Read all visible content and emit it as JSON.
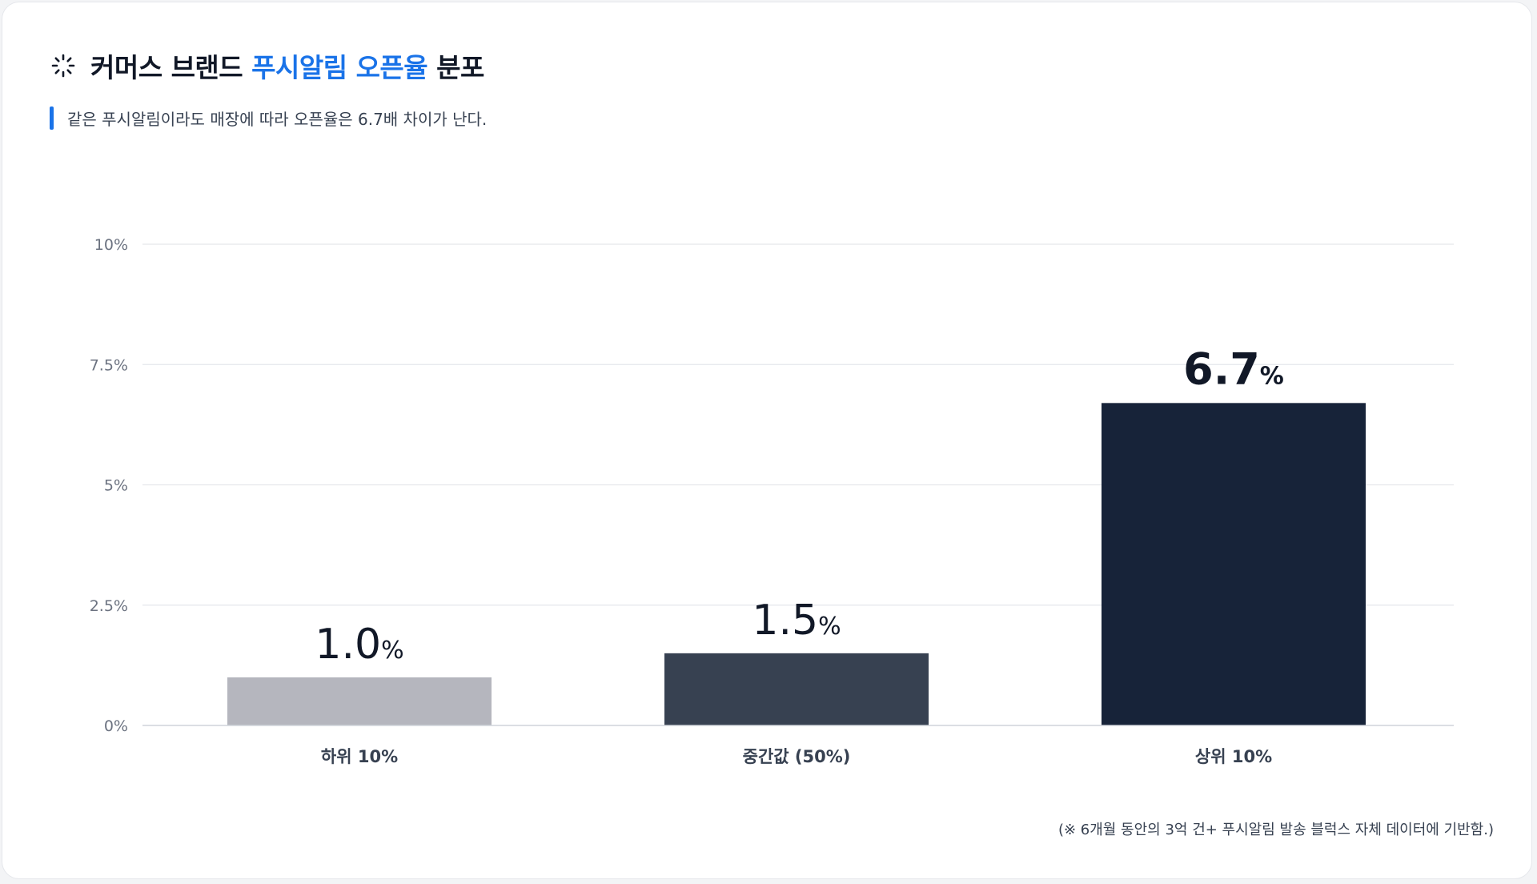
{
  "header": {
    "title_prefix": "커머스 브랜드 ",
    "title_accent": "푸시알림 오픈율",
    "title_suffix": " 분포",
    "subtitle": "같은 푸시알림이라도 매장에 따라 오픈율은 6.7배 차이가 난다.",
    "icon": "loading-spinner-icon"
  },
  "footnote": "(※ 6개월 동안의 3억 건+ 푸시알림 발송 블럭스 자체 데이터에 기반함.)",
  "colors": {
    "accent": "#1a73e8",
    "bars": [
      "#b5b6be",
      "#374151",
      "#172339"
    ],
    "grid": "#e5e7eb",
    "label": "#6b7280"
  },
  "chart_data": {
    "type": "bar",
    "categories": [
      "하위 10%",
      "중간값 (50%)",
      "상위 10%"
    ],
    "values": [
      1.0,
      1.5,
      6.7
    ],
    "value_labels": [
      "1.0",
      "1.5",
      "6.7"
    ],
    "value_unit": "%",
    "yticks": [
      "0%",
      "2.5%",
      "5%",
      "7.5%",
      "10%"
    ],
    "ytick_values": [
      0,
      2.5,
      5,
      7.5,
      10
    ],
    "ylim": [
      0,
      10
    ],
    "grid": true,
    "legend": "none"
  }
}
